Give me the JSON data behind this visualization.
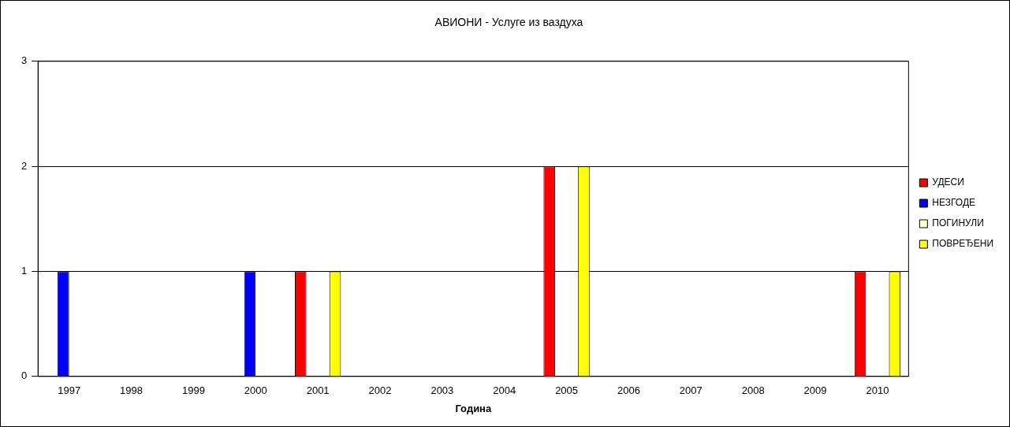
{
  "chart_data": {
    "type": "bar",
    "title": "АВИОНИ - Услуге из ваздуха",
    "xlabel": "Година",
    "categories": [
      "1997",
      "1998",
      "1999",
      "2000",
      "2001",
      "2002",
      "2003",
      "2004",
      "2005",
      "2006",
      "2007",
      "2008",
      "2009",
      "2010"
    ],
    "series": [
      {
        "name": "УДЕСИ",
        "color": "#ff0000",
        "values": [
          0,
          0,
          0,
          0,
          1,
          0,
          0,
          0,
          2,
          0,
          0,
          0,
          0,
          1
        ]
      },
      {
        "name": "НЕЗГОДЕ",
        "color": "#0000ff",
        "values": [
          1,
          0,
          0,
          1,
          0,
          0,
          0,
          0,
          0,
          0,
          0,
          0,
          0,
          0
        ]
      },
      {
        "name": "ПОГИНУЛИ",
        "color": "#ffffcc",
        "values": [
          0,
          0,
          0,
          0,
          0,
          0,
          0,
          0,
          0,
          0,
          0,
          0,
          0,
          0
        ]
      },
      {
        "name": "ПОВРЕЂЕНИ",
        "color": "#ffff00",
        "values": [
          0,
          0,
          0,
          0,
          1,
          0,
          0,
          0,
          2,
          0,
          0,
          0,
          0,
          1
        ]
      }
    ],
    "ylim": [
      0,
      3
    ],
    "yticks": [
      0,
      1,
      2,
      3
    ],
    "grid": "y",
    "legend": "right"
  }
}
